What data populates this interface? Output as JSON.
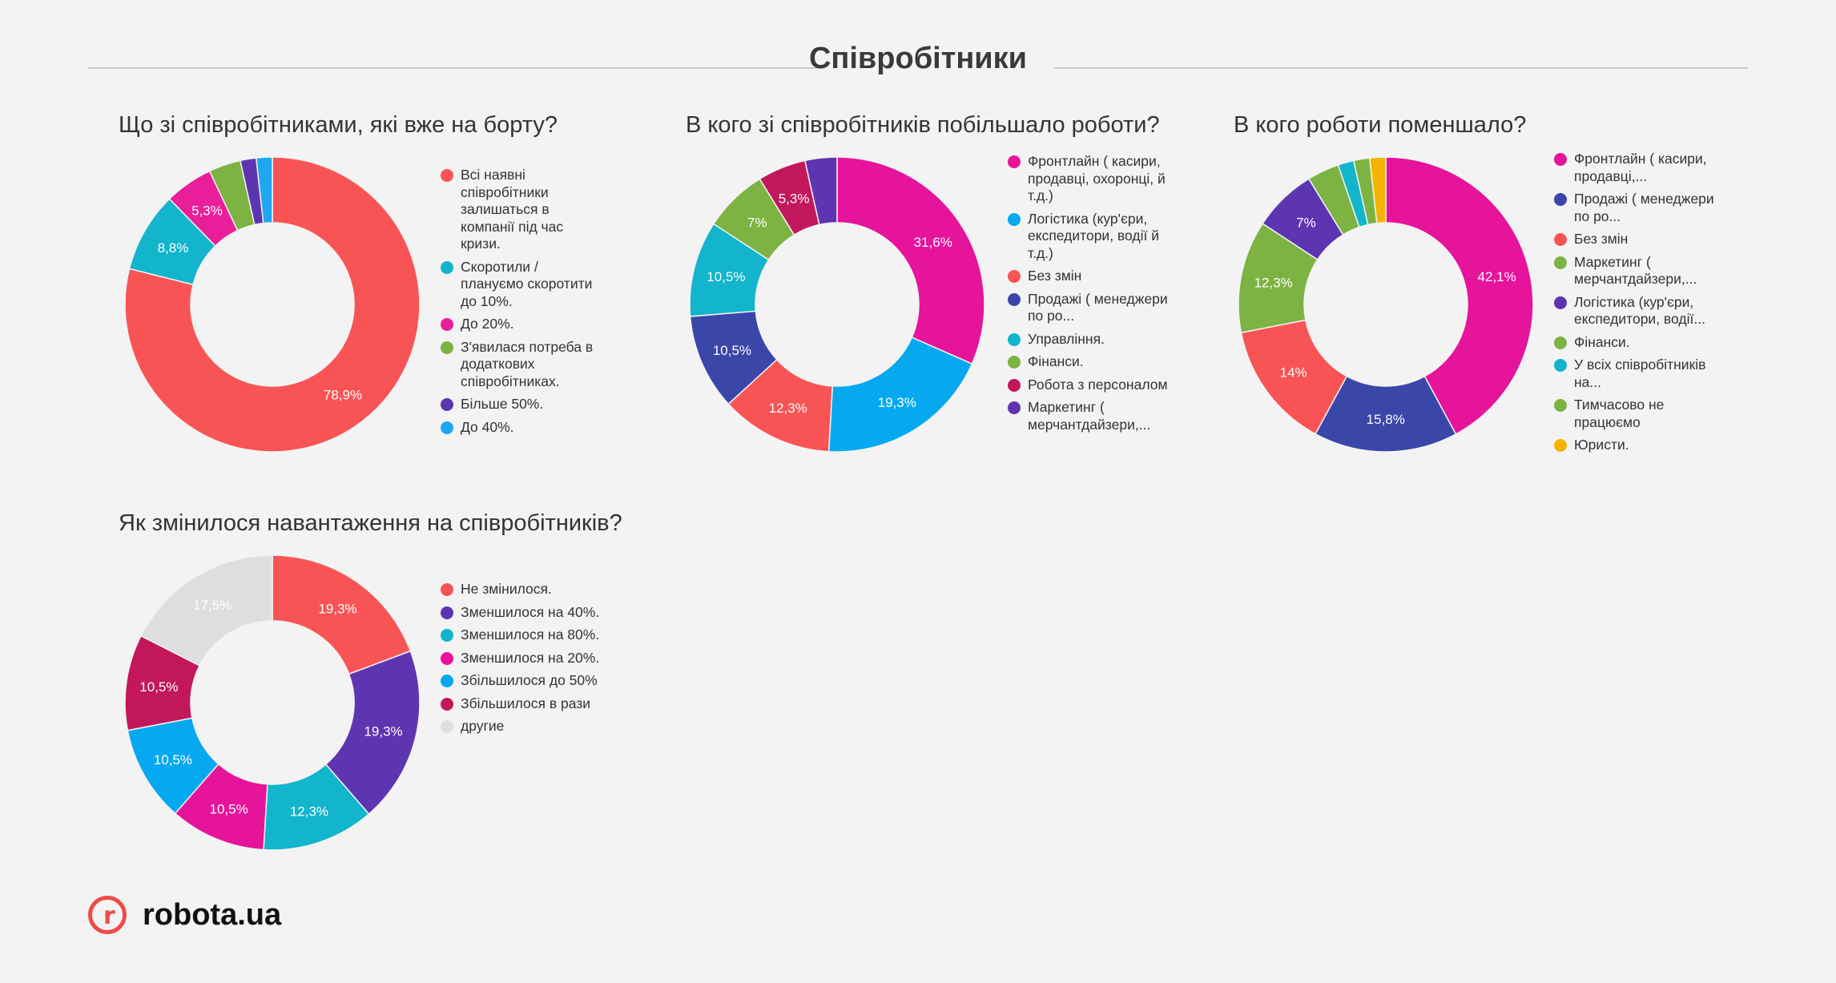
{
  "page": {
    "title": "Співробітники"
  },
  "brand": {
    "mark": "r",
    "name": "robota.ua",
    "color": "#ef4b4b"
  },
  "chart_data": [
    {
      "type": "pie",
      "title": "Що зі співробітниками, які вже на борту?",
      "categories": [
        "Всі наявні співробітники залишаться в компанії під час кризи.",
        "Скоротили / плануємо скоротити до 10%.",
        "До 20%.",
        "З'явилася потреба в додаткових співробітниках.",
        "Більше 50%.",
        "До 40%."
      ],
      "values": [
        78.9,
        8.8,
        5.3,
        3.5,
        1.75,
        1.75
      ],
      "labels": [
        "78,9%",
        "8,8%",
        "5,3%",
        "",
        "",
        ""
      ],
      "colors": [
        "#f95455",
        "#12b5cb",
        "#e91e9b",
        "#7cb342",
        "#5e35b1",
        "#1ea7f0"
      ]
    },
    {
      "type": "pie",
      "title": "В кого зі співробітників побільшало роботи?",
      "categories": [
        "Фронтлайн ( касири, продавці, охоронці, й т.д.)",
        "Логістика (кур'єри, експедитори, водії й т.д.)",
        "Без змін",
        "Продажі ( менеджери по ро...",
        "Управління.",
        "Фінанси.",
        "Робота з персоналом",
        "Маркетинг ( мерчантдайзери,..."
      ],
      "values": [
        31.6,
        19.3,
        12.3,
        10.5,
        10.5,
        7,
        5.3,
        3.5
      ],
      "labels": [
        "31,6%",
        "19,3%",
        "12,3%",
        "10,5%",
        "10,5%",
        "7%",
        "5,3%",
        ""
      ],
      "colors": [
        "#e6139b",
        "#06a9ef",
        "#f95455",
        "#3a46a8",
        "#12b5cb",
        "#7cb342",
        "#c2185b",
        "#5e35b1"
      ]
    },
    {
      "type": "pie",
      "title": "В кого роботи поменшало?",
      "categories": [
        "Фронтлайн ( касири, продавці,...",
        "Продажі ( менеджери по ро...",
        "Без змін",
        "Маркетинг ( мерчантдайзери,...",
        "Логістика (кур'єри, експедитори, водії...",
        "Фінанси.",
        "У всіх співробітників на...",
        "Тимчасово не працюємо",
        "Юристи."
      ],
      "values": [
        42.1,
        15.8,
        14,
        12.3,
        7,
        3.5,
        1.75,
        1.75,
        1.75
      ],
      "labels": [
        "42,1%",
        "15,8%",
        "14%",
        "12,3%",
        "7%",
        "",
        "",
        "",
        ""
      ],
      "colors": [
        "#e6139b",
        "#3a46a8",
        "#f95455",
        "#7cb342",
        "#5e35b1",
        "#7cb342",
        "#12b5cb",
        "#7cb342",
        "#f4b400"
      ]
    },
    {
      "type": "pie",
      "title": "Як змінилося навантаження на співробітників?",
      "categories": [
        "Не змінилося.",
        "Зменшилося на 40%.",
        "Зменшилося на 80%.",
        "Зменшилося на 20%.",
        "Збільшилося до 50%",
        "Збільшилося в рази",
        "другие"
      ],
      "values": [
        19.3,
        19.3,
        12.3,
        10.5,
        10.5,
        10.5,
        17.5
      ],
      "labels": [
        "19,3%",
        "19,3%",
        "12,3%",
        "10,5%",
        "10,5%",
        "10,5%",
        "17,5%"
      ],
      "colors": [
        "#f95455",
        "#5e35b1",
        "#12b5cb",
        "#e6139b",
        "#06a9ef",
        "#c2185b",
        "#dedede"
      ]
    }
  ]
}
